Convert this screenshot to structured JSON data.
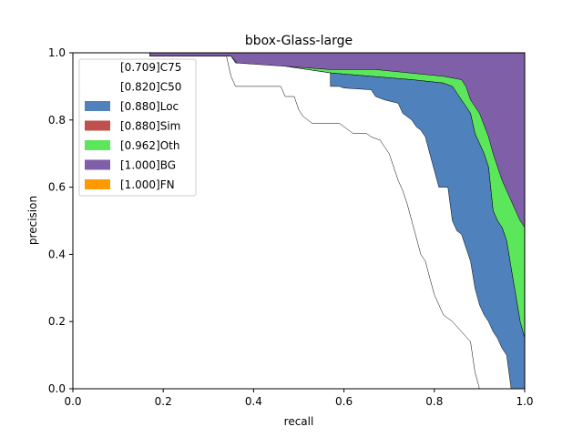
{
  "chart_data": {
    "type": "area",
    "title": "bbox-Glass-large",
    "xlabel": "recall",
    "ylabel": "precision",
    "xlim": [
      0,
      1
    ],
    "ylim": [
      0,
      1
    ],
    "xticks": [
      "0.0",
      "0.2",
      "0.4",
      "0.6",
      "0.8",
      "1.0"
    ],
    "yticks": [
      "0.0",
      "0.2",
      "0.4",
      "0.6",
      "0.8",
      "1.0"
    ],
    "grid": false,
    "legend_position": "upper-left",
    "series": [
      {
        "name": "[1.000]FN",
        "color": "#ff9900",
        "points": [
          [
            0,
            1
          ],
          [
            1,
            1
          ]
        ]
      },
      {
        "name": "[1.000]BG",
        "color": "#7f5fa8",
        "points": [
          [
            0,
            1
          ],
          [
            1,
            1
          ]
        ]
      },
      {
        "name": "[0.962]Oth",
        "color": "#5ce65c",
        "points": [
          [
            0,
            1
          ],
          [
            0.17,
            1
          ],
          [
            0.17,
            0.99
          ],
          [
            0.35,
            0.99
          ],
          [
            0.37,
            0.96
          ],
          [
            0.47,
            0.96
          ],
          [
            0.57,
            0.95
          ],
          [
            0.67,
            0.95
          ],
          [
            0.82,
            0.93
          ],
          [
            0.86,
            0.92
          ],
          [
            0.87,
            0.9
          ],
          [
            0.88,
            0.86
          ],
          [
            0.9,
            0.82
          ],
          [
            0.92,
            0.75
          ],
          [
            0.93,
            0.7
          ],
          [
            0.95,
            0.62
          ],
          [
            0.97,
            0.56
          ],
          [
            0.99,
            0.5
          ],
          [
            1.0,
            0.48
          ]
        ]
      },
      {
        "name": "[0.880]Sim",
        "color": "#c0504d",
        "points": [
          [
            0,
            1
          ],
          [
            0.17,
            1
          ],
          [
            0.17,
            0.99
          ],
          [
            0.35,
            0.99
          ],
          [
            0.37,
            0.96
          ],
          [
            0.47,
            0.96
          ],
          [
            0.57,
            0.94
          ],
          [
            0.75,
            0.92
          ],
          [
            0.82,
            0.91
          ],
          [
            0.84,
            0.9
          ],
          [
            0.86,
            0.86
          ],
          [
            0.88,
            0.82
          ],
          [
            0.89,
            0.76
          ],
          [
            0.91,
            0.7
          ],
          [
            0.92,
            0.66
          ],
          [
            0.93,
            0.53
          ],
          [
            0.94,
            0.5
          ],
          [
            0.95,
            0.48
          ],
          [
            0.96,
            0.44
          ],
          [
            0.97,
            0.36
          ],
          [
            0.98,
            0.28
          ],
          [
            0.99,
            0.2
          ],
          [
            1.0,
            0.15
          ]
        ]
      },
      {
        "name": "[0.880]Loc",
        "color": "#4f81bd",
        "points": [
          [
            0,
            1
          ],
          [
            0.17,
            1
          ],
          [
            0.17,
            0.99
          ],
          [
            0.35,
            0.99
          ],
          [
            0.37,
            0.96
          ],
          [
            0.47,
            0.96
          ],
          [
            0.57,
            0.94
          ],
          [
            0.75,
            0.92
          ],
          [
            0.82,
            0.91
          ],
          [
            0.84,
            0.9
          ],
          [
            0.86,
            0.86
          ],
          [
            0.88,
            0.82
          ],
          [
            0.89,
            0.76
          ],
          [
            0.91,
            0.7
          ],
          [
            0.92,
            0.66
          ],
          [
            0.93,
            0.53
          ],
          [
            0.94,
            0.5
          ],
          [
            0.95,
            0.48
          ],
          [
            0.96,
            0.44
          ],
          [
            0.97,
            0.36
          ],
          [
            0.98,
            0.28
          ],
          [
            0.99,
            0.2
          ],
          [
            1.0,
            0.15
          ]
        ]
      },
      {
        "name": "[0.820]C50",
        "color": "#ffffff",
        "points": [
          [
            0,
            1
          ],
          [
            0.17,
            1
          ],
          [
            0.17,
            0.99
          ],
          [
            0.35,
            0.99
          ],
          [
            0.36,
            0.97
          ],
          [
            0.47,
            0.96
          ],
          [
            0.57,
            0.94
          ],
          [
            0.57,
            0.9
          ],
          [
            0.59,
            0.9
          ],
          [
            0.6,
            0.895
          ],
          [
            0.66,
            0.89
          ],
          [
            0.67,
            0.87
          ],
          [
            0.69,
            0.86
          ],
          [
            0.72,
            0.85
          ],
          [
            0.73,
            0.82
          ],
          [
            0.75,
            0.8
          ],
          [
            0.76,
            0.78
          ],
          [
            0.77,
            0.77
          ],
          [
            0.78,
            0.75
          ],
          [
            0.79,
            0.7
          ],
          [
            0.8,
            0.65
          ],
          [
            0.81,
            0.6
          ],
          [
            0.83,
            0.6
          ],
          [
            0.84,
            0.5
          ],
          [
            0.85,
            0.47
          ],
          [
            0.86,
            0.46
          ],
          [
            0.87,
            0.42
          ],
          [
            0.88,
            0.38
          ],
          [
            0.89,
            0.3
          ],
          [
            0.9,
            0.25
          ],
          [
            0.91,
            0.22
          ],
          [
            0.92,
            0.2
          ],
          [
            0.93,
            0.17
          ],
          [
            0.94,
            0.15
          ],
          [
            0.95,
            0.12
          ],
          [
            0.96,
            0.1
          ],
          [
            0.97,
            0.0
          ],
          [
            1.0,
            0.0
          ]
        ]
      },
      {
        "name": "[0.709]C75",
        "color": "#ffffff",
        "points": [
          [
            0,
            1
          ],
          [
            0.17,
            1
          ],
          [
            0.17,
            0.99
          ],
          [
            0.34,
            0.99
          ],
          [
            0.35,
            0.93
          ],
          [
            0.36,
            0.9
          ],
          [
            0.4,
            0.9
          ],
          [
            0.46,
            0.9
          ],
          [
            0.47,
            0.87
          ],
          [
            0.49,
            0.87
          ],
          [
            0.5,
            0.83
          ],
          [
            0.51,
            0.81
          ],
          [
            0.52,
            0.8
          ],
          [
            0.53,
            0.79
          ],
          [
            0.59,
            0.79
          ],
          [
            0.61,
            0.77
          ],
          [
            0.62,
            0.76
          ],
          [
            0.65,
            0.76
          ],
          [
            0.66,
            0.75
          ],
          [
            0.68,
            0.74
          ],
          [
            0.69,
            0.72
          ],
          [
            0.7,
            0.7
          ],
          [
            0.71,
            0.66
          ],
          [
            0.72,
            0.62
          ],
          [
            0.73,
            0.59
          ],
          [
            0.74,
            0.55
          ],
          [
            0.75,
            0.5
          ],
          [
            0.76,
            0.45
          ],
          [
            0.77,
            0.4
          ],
          [
            0.78,
            0.38
          ],
          [
            0.79,
            0.33
          ],
          [
            0.8,
            0.28
          ],
          [
            0.81,
            0.25
          ],
          [
            0.82,
            0.22
          ],
          [
            0.84,
            0.2
          ],
          [
            0.86,
            0.17
          ],
          [
            0.88,
            0.14
          ],
          [
            0.89,
            0.05
          ],
          [
            0.9,
            0.0
          ],
          [
            1.0,
            0.0
          ]
        ]
      }
    ]
  }
}
